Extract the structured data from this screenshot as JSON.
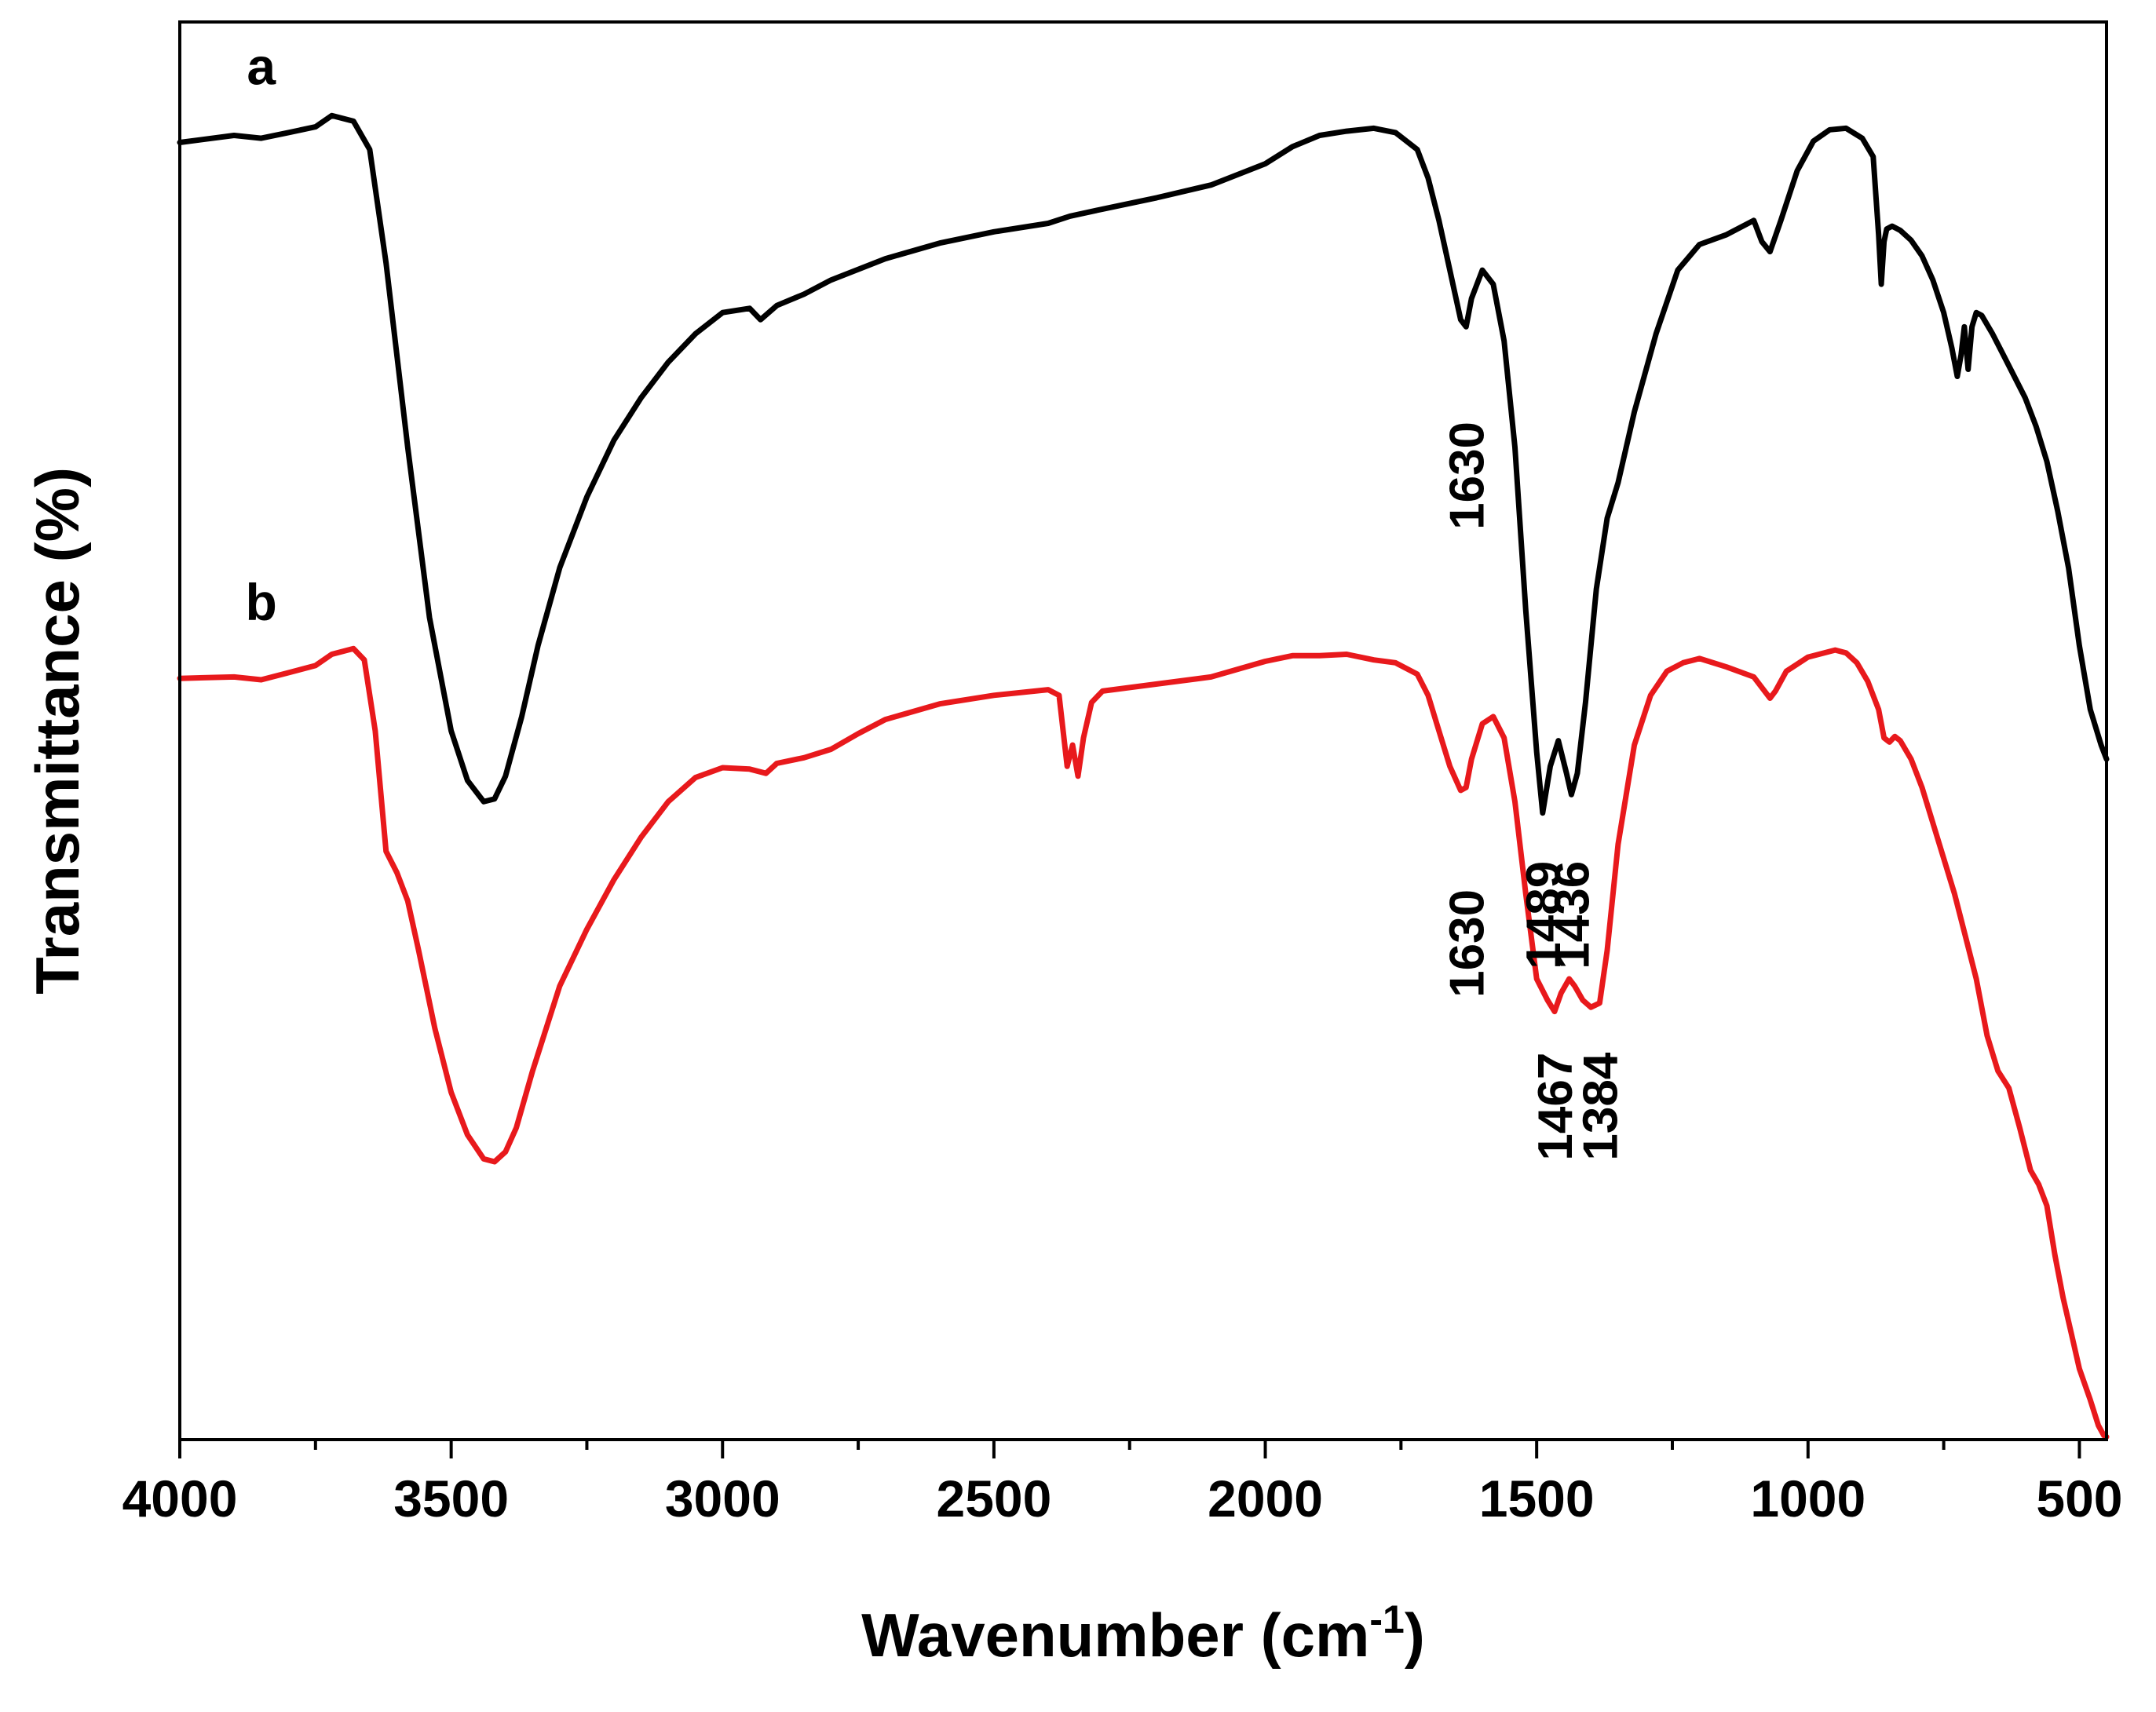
{
  "chart_data": {
    "type": "line",
    "title": "",
    "xlabel": "Wavenumber (cm",
    "xlabel_superscript": "-1",
    "xlabel_suffix": ")",
    "ylabel": "Transmittance (%)",
    "xlim": [
      4000,
      450
    ],
    "x_reversed": true,
    "ylim": [
      0,
      100
    ],
    "yticks_shown": false,
    "grid": false,
    "xticks": [
      4000,
      3500,
      3000,
      2500,
      2000,
      1500,
      1000,
      500
    ],
    "xtick_labels": [
      "4000",
      "3500",
      "3000",
      "2500",
      "2000",
      "1500",
      "1000",
      "500"
    ],
    "minor_xticks": [
      3750,
      3250,
      2750,
      2250,
      1750,
      1250,
      750
    ],
    "series": [
      {
        "name": "a",
        "color": "#000000",
        "x": [
          4000,
          3900,
          3850,
          3800,
          3750,
          3720,
          3680,
          3650,
          3620,
          3580,
          3540,
          3500,
          3470,
          3440,
          3420,
          3400,
          3370,
          3340,
          3300,
          3250,
          3200,
          3150,
          3100,
          3050,
          3000,
          2950,
          2930,
          2900,
          2850,
          2800,
          2700,
          2600,
          2500,
          2400,
          2360,
          2300,
          2200,
          2100,
          2000,
          1950,
          1900,
          1850,
          1800,
          1760,
          1720,
          1700,
          1680,
          1660,
          1640,
          1630,
          1620,
          1600,
          1580,
          1560,
          1540,
          1520,
          1500,
          1489,
          1475,
          1460,
          1445,
          1436,
          1425,
          1410,
          1390,
          1370,
          1350,
          1320,
          1280,
          1240,
          1200,
          1150,
          1100,
          1085,
          1070,
          1050,
          1020,
          990,
          960,
          930,
          900,
          880,
          870,
          865,
          860,
          855,
          845,
          830,
          810,
          790,
          770,
          750,
          735,
          725,
          718,
          712,
          705,
          698,
          690,
          680,
          660,
          640,
          620,
          600,
          580,
          560,
          540,
          520,
          500,
          480,
          460,
          450
        ],
        "y": [
          91.5,
          92.0,
          91.8,
          92.2,
          92.6,
          93.4,
          93.0,
          91.0,
          83.0,
          70.0,
          58.0,
          50.0,
          46.5,
          45.0,
          45.2,
          46.8,
          51.0,
          56.0,
          61.5,
          66.5,
          70.5,
          73.5,
          76.0,
          78.0,
          79.5,
          79.8,
          79.0,
          80.0,
          80.8,
          81.8,
          83.3,
          84.4,
          85.2,
          85.8,
          86.3,
          86.8,
          87.6,
          88.5,
          90.0,
          91.2,
          92.0,
          92.3,
          92.5,
          92.2,
          91.0,
          89.0,
          86.0,
          82.5,
          79.0,
          78.5,
          80.5,
          82.5,
          81.5,
          77.5,
          70.0,
          58.5,
          48.5,
          44.2,
          47.5,
          49.3,
          47.0,
          45.5,
          47.0,
          52.0,
          60.0,
          65.0,
          67.5,
          72.5,
          78.0,
          82.5,
          84.3,
          85.0,
          86.0,
          84.5,
          83.8,
          86.0,
          89.5,
          91.6,
          92.4,
          92.5,
          91.8,
          90.5,
          85.0,
          81.5,
          84.5,
          85.4,
          85.6,
          85.3,
          84.6,
          83.5,
          81.8,
          79.5,
          77.0,
          75.0,
          76.5,
          78.5,
          75.5,
          78.5,
          79.5,
          79.3,
          78.0,
          76.5,
          75.0,
          73.5,
          71.5,
          69.0,
          65.5,
          61.5,
          56.0,
          51.5,
          49.0,
          48.0
        ]
      },
      {
        "name": "b",
        "color": "#e8191c",
        "x": [
          4000,
          3900,
          3850,
          3800,
          3750,
          3720,
          3680,
          3660,
          3640,
          3620,
          3600,
          3580,
          3560,
          3530,
          3500,
          3470,
          3440,
          3420,
          3400,
          3380,
          3350,
          3300,
          3250,
          3200,
          3150,
          3100,
          3050,
          3000,
          2950,
          2920,
          2900,
          2850,
          2800,
          2750,
          2700,
          2600,
          2500,
          2400,
          2380,
          2365,
          2355,
          2345,
          2335,
          2320,
          2300,
          2200,
          2100,
          2000,
          1950,
          1900,
          1850,
          1800,
          1760,
          1720,
          1700,
          1680,
          1660,
          1640,
          1630,
          1620,
          1600,
          1580,
          1560,
          1540,
          1520,
          1500,
          1480,
          1467,
          1455,
          1440,
          1430,
          1415,
          1400,
          1384,
          1370,
          1350,
          1320,
          1290,
          1260,
          1230,
          1200,
          1150,
          1100,
          1070,
          1060,
          1040,
          1000,
          970,
          950,
          930,
          910,
          890,
          870,
          860,
          850,
          840,
          830,
          810,
          790,
          770,
          750,
          730,
          710,
          690,
          670,
          650,
          630,
          610,
          590,
          575,
          560,
          545,
          530,
          515,
          500,
          480,
          465,
          455,
          450
        ],
        "y": [
          53.7,
          53.8,
          53.6,
          54.1,
          54.6,
          55.4,
          55.8,
          55.0,
          50.0,
          41.5,
          40.0,
          38.0,
          34.5,
          29.0,
          24.5,
          21.5,
          19.8,
          19.6,
          20.3,
          22.0,
          26.0,
          32.0,
          36.0,
          39.5,
          42.5,
          45.0,
          46.7,
          47.4,
          47.3,
          47.0,
          47.7,
          48.1,
          48.7,
          49.8,
          50.8,
          51.9,
          52.5,
          52.9,
          52.5,
          47.5,
          49.0,
          46.8,
          49.5,
          52.0,
          52.8,
          53.3,
          53.8,
          54.9,
          55.3,
          55.3,
          55.4,
          55.0,
          54.8,
          54.0,
          52.5,
          50.0,
          47.5,
          45.8,
          46.0,
          48.0,
          50.5,
          51.0,
          49.5,
          45.0,
          38.5,
          32.5,
          31.0,
          30.2,
          31.5,
          32.5,
          32.0,
          31.0,
          30.5,
          30.8,
          34.5,
          42.0,
          49.0,
          52.5,
          54.2,
          54.8,
          55.1,
          54.5,
          53.8,
          52.3,
          52.8,
          54.2,
          55.2,
          55.5,
          55.7,
          55.5,
          54.8,
          53.5,
          51.5,
          49.5,
          49.2,
          49.6,
          49.3,
          48.0,
          46.0,
          43.5,
          41.0,
          38.5,
          35.5,
          32.5,
          28.5,
          26.0,
          24.8,
          22.0,
          19.0,
          18.0,
          16.5,
          13.0,
          10.0,
          7.5,
          5.0,
          2.8,
          1.0,
          0.3,
          0.2
        ]
      }
    ],
    "trace_labels": [
      {
        "text": "a",
        "x": 3850,
        "y": 95.6
      },
      {
        "text": "b",
        "x": 3850,
        "y": 57.8
      }
    ],
    "annotations": [
      {
        "text": "1630",
        "series": "a",
        "x": 1630,
        "y": 68.0
      },
      {
        "text": "1489",
        "series": "a",
        "x": 1489,
        "y": 37.0
      },
      {
        "text": "1436",
        "series": "a",
        "x": 1436,
        "y": 37.0
      },
      {
        "text": "1630",
        "series": "b",
        "x": 1630,
        "y": 35.0
      },
      {
        "text": "1467",
        "series": "b",
        "x": 1467,
        "y": 23.5
      },
      {
        "text": "1384",
        "series": "b",
        "x": 1384,
        "y": 23.5
      }
    ]
  }
}
